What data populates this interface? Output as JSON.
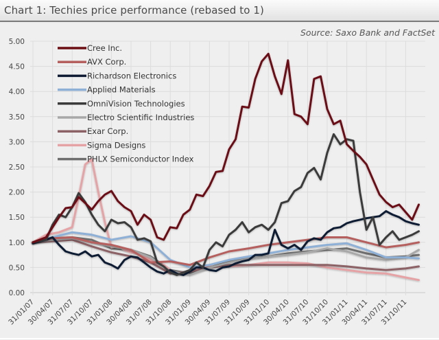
{
  "header": {
    "title": "Chart 1: Techies price performance (rebased to 1)"
  },
  "chart_data": {
    "type": "line",
    "title": "Chart 1: Techies price performance (rebased to 1)",
    "source": "Source: Saxo Bank and FactSet",
    "xlabel": "",
    "ylabel": "",
    "ylim": [
      0,
      5
    ],
    "yticks": [
      "0.00",
      "0.50",
      "1.00",
      "1.50",
      "2.00",
      "2.50",
      "3.00",
      "3.50",
      "4.00",
      "4.50",
      "5.00"
    ],
    "xticks": [
      "31/01/07",
      "30/04/07",
      "31/07/07",
      "31/10/07",
      "31/01/08",
      "30/04/08",
      "31/07/08",
      "31/10/08",
      "31/01/09",
      "30/04/09",
      "31/07/09",
      "31/10/09",
      "31/01/10",
      "30/04/10",
      "31/07/10",
      "31/10/10",
      "31/01/11",
      "30/04/11",
      "31/07/11",
      "31/10/11"
    ],
    "x_unit": "months since Jan 2007",
    "grid": true,
    "legend_position": "top-left",
    "series": [
      {
        "name": "Cree Inc.",
        "color": "#6b0f14",
        "x": [
          0,
          2,
          4,
          5,
          6,
          7,
          8,
          9,
          10,
          11,
          12,
          13,
          14,
          15,
          16,
          17,
          18,
          19,
          20,
          21,
          22,
          23,
          24,
          25,
          26,
          27,
          28,
          29,
          30,
          31,
          32,
          33,
          34,
          35,
          36,
          37,
          38,
          39,
          40,
          41,
          42,
          43,
          44,
          45,
          46,
          47,
          48,
          49,
          50,
          51,
          52,
          53,
          54,
          55,
          56,
          57,
          58,
          59
        ],
        "values": [
          1.0,
          1.1,
          1.5,
          1.68,
          1.7,
          1.9,
          1.78,
          1.65,
          1.82,
          1.95,
          2.02,
          1.82,
          1.7,
          1.62,
          1.35,
          1.55,
          1.45,
          1.1,
          1.05,
          1.3,
          1.28,
          1.55,
          1.65,
          1.95,
          1.92,
          2.12,
          2.4,
          2.42,
          2.85,
          3.05,
          3.7,
          3.68,
          4.25,
          4.6,
          4.75,
          4.3,
          3.95,
          4.62,
          3.55,
          3.5,
          3.35,
          4.25,
          4.3,
          3.65,
          3.35,
          3.42,
          2.95,
          2.82,
          2.7,
          2.55,
          2.25,
          1.95,
          1.8,
          1.7,
          1.75,
          1.6,
          1.45,
          1.75
        ]
      },
      {
        "name": "AVX Corp.",
        "color": "#b5605e",
        "x": [
          0,
          3,
          6,
          9,
          12,
          15,
          18,
          21,
          24,
          27,
          30,
          33,
          36,
          39,
          42,
          45,
          48,
          51,
          54,
          57,
          59
        ],
        "values": [
          1.0,
          1.08,
          1.1,
          1.0,
          0.95,
          0.85,
          0.6,
          0.62,
          0.55,
          0.7,
          0.82,
          0.88,
          0.95,
          1.0,
          1.05,
          1.1,
          1.1,
          1.0,
          0.9,
          0.95,
          1.0
        ]
      },
      {
        "name": "Richardson Electronics",
        "color": "#0f1b33",
        "x": [
          0,
          2,
          3,
          4,
          5,
          6,
          7,
          8,
          9,
          10,
          11,
          12,
          13,
          14,
          15,
          16,
          17,
          18,
          19,
          20,
          21,
          22,
          23,
          24,
          25,
          26,
          27,
          28,
          29,
          30,
          31,
          32,
          33,
          34,
          35,
          36,
          37,
          38,
          39,
          40,
          41,
          42,
          43,
          44,
          45,
          46,
          47,
          48,
          49,
          50,
          51,
          52,
          53,
          54,
          55,
          56,
          57,
          58,
          59
        ],
        "values": [
          0.98,
          1.05,
          1.1,
          0.95,
          0.82,
          0.78,
          0.75,
          0.82,
          0.72,
          0.75,
          0.6,
          0.55,
          0.48,
          0.65,
          0.72,
          0.7,
          0.6,
          0.5,
          0.42,
          0.38,
          0.45,
          0.38,
          0.35,
          0.42,
          0.5,
          0.5,
          0.45,
          0.43,
          0.5,
          0.52,
          0.58,
          0.62,
          0.65,
          0.75,
          0.75,
          0.78,
          1.25,
          0.95,
          0.88,
          0.95,
          0.85,
          1.02,
          1.08,
          1.05,
          1.2,
          1.28,
          1.3,
          1.38,
          1.42,
          1.45,
          1.48,
          1.5,
          1.52,
          1.62,
          1.55,
          1.5,
          1.42,
          1.38,
          1.35
        ]
      },
      {
        "name": "Applied Materials",
        "color": "#8fb0d6",
        "x": [
          0,
          3,
          6,
          9,
          12,
          15,
          18,
          21,
          24,
          27,
          30,
          33,
          36,
          39,
          42,
          45,
          48,
          51,
          54,
          57,
          59
        ],
        "values": [
          1.0,
          1.1,
          1.2,
          1.15,
          1.05,
          1.12,
          1.0,
          0.65,
          0.5,
          0.55,
          0.65,
          0.72,
          0.78,
          0.85,
          0.9,
          0.95,
          0.98,
          0.85,
          0.7,
          0.7,
          0.68
        ]
      },
      {
        "name": "OmniVision Technologies",
        "color": "#3a3a3a",
        "x": [
          0,
          2,
          3,
          4,
          5,
          6,
          7,
          8,
          9,
          10,
          11,
          12,
          13,
          14,
          15,
          16,
          17,
          18,
          19,
          20,
          21,
          22,
          23,
          24,
          25,
          26,
          27,
          28,
          29,
          30,
          31,
          32,
          33,
          34,
          35,
          36,
          37,
          38,
          39,
          40,
          41,
          42,
          43,
          44,
          45,
          46,
          47,
          48,
          49,
          50,
          51,
          52,
          53,
          54,
          55,
          56,
          57,
          58,
          59
        ],
        "values": [
          1.0,
          1.05,
          1.35,
          1.55,
          1.5,
          1.7,
          1.98,
          1.8,
          1.55,
          1.35,
          1.22,
          1.45,
          1.38,
          1.4,
          1.3,
          1.05,
          1.08,
          1.02,
          0.6,
          0.52,
          0.4,
          0.35,
          0.4,
          0.45,
          0.6,
          0.5,
          0.85,
          1.0,
          0.92,
          1.15,
          1.25,
          1.4,
          1.2,
          1.3,
          1.35,
          1.25,
          1.4,
          1.78,
          1.82,
          2.02,
          2.1,
          2.38,
          2.48,
          2.25,
          2.78,
          3.15,
          2.95,
          3.05,
          3.02,
          2.0,
          1.25,
          1.5,
          0.95,
          1.1,
          1.22,
          1.05,
          1.1,
          1.15,
          1.22
        ]
      },
      {
        "name": "Electro Scientific Industries",
        "color": "#a8a8a8",
        "x": [
          0,
          3,
          6,
          9,
          12,
          15,
          18,
          21,
          24,
          27,
          30,
          33,
          36,
          39,
          42,
          45,
          48,
          51,
          54,
          57,
          59
        ],
        "values": [
          1.0,
          1.05,
          1.08,
          1.0,
          0.92,
          0.85,
          0.7,
          0.42,
          0.35,
          0.5,
          0.6,
          0.68,
          0.72,
          0.75,
          0.8,
          0.88,
          0.82,
          0.7,
          0.65,
          0.7,
          0.85
        ]
      },
      {
        "name": "Exar Corp.",
        "color": "#8c6266",
        "x": [
          0,
          3,
          6,
          9,
          12,
          15,
          18,
          21,
          24,
          27,
          30,
          33,
          36,
          39,
          42,
          45,
          48,
          51,
          54,
          57,
          59
        ],
        "values": [
          1.0,
          1.02,
          1.05,
          0.92,
          0.8,
          0.72,
          0.6,
          0.38,
          0.42,
          0.5,
          0.55,
          0.55,
          0.55,
          0.55,
          0.55,
          0.55,
          0.52,
          0.48,
          0.45,
          0.48,
          0.52
        ]
      },
      {
        "name": "Sigma Designs",
        "color": "#e6a3a6",
        "x": [
          0,
          2,
          4,
          6,
          7,
          8,
          9,
          10,
          11,
          12,
          13,
          14,
          15,
          16,
          17,
          18,
          19,
          20,
          21,
          22,
          24,
          27,
          30,
          33,
          36,
          39,
          42,
          45,
          48,
          51,
          54,
          57,
          59
        ],
        "values": [
          1.0,
          1.15,
          1.2,
          1.3,
          1.9,
          2.55,
          2.65,
          2.0,
          1.4,
          0.9,
          0.92,
          0.85,
          0.8,
          0.78,
          0.72,
          0.65,
          0.58,
          0.55,
          0.45,
          0.38,
          0.42,
          0.52,
          0.52,
          0.55,
          0.6,
          0.6,
          0.58,
          0.5,
          0.45,
          0.4,
          0.38,
          0.3,
          0.25
        ]
      },
      {
        "name": "PHLX Semiconductor Index",
        "color": "#6e6e6e",
        "x": [
          0,
          3,
          6,
          9,
          12,
          15,
          18,
          21,
          24,
          27,
          30,
          33,
          36,
          39,
          42,
          45,
          48,
          51,
          54,
          57,
          59
        ],
        "values": [
          1.0,
          1.08,
          1.1,
          1.05,
          0.88,
          0.85,
          0.72,
          0.45,
          0.38,
          0.5,
          0.62,
          0.68,
          0.72,
          0.78,
          0.82,
          0.85,
          0.88,
          0.78,
          0.7,
          0.72,
          0.75
        ]
      }
    ]
  }
}
